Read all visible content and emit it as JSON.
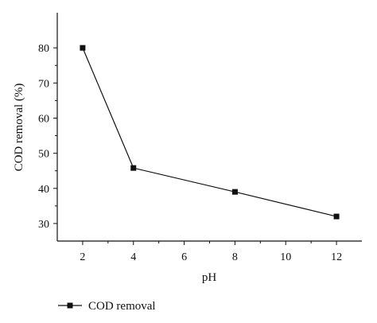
{
  "chart_data": {
    "type": "line",
    "title": "",
    "xlabel": "pH",
    "ylabel": "COD removal (%)",
    "xlim": [
      1,
      13
    ],
    "ylim": [
      25,
      90
    ],
    "xticks": [
      2,
      4,
      6,
      8,
      10,
      12
    ],
    "yticks": [
      30,
      40,
      50,
      60,
      70,
      80
    ],
    "grid": false,
    "legend_position": "bottom-left",
    "series": [
      {
        "name": "COD removal",
        "marker": "square",
        "color": "#111111",
        "x": [
          2,
          4,
          8,
          12
        ],
        "y": [
          80,
          45.8,
          39,
          32
        ]
      }
    ]
  }
}
